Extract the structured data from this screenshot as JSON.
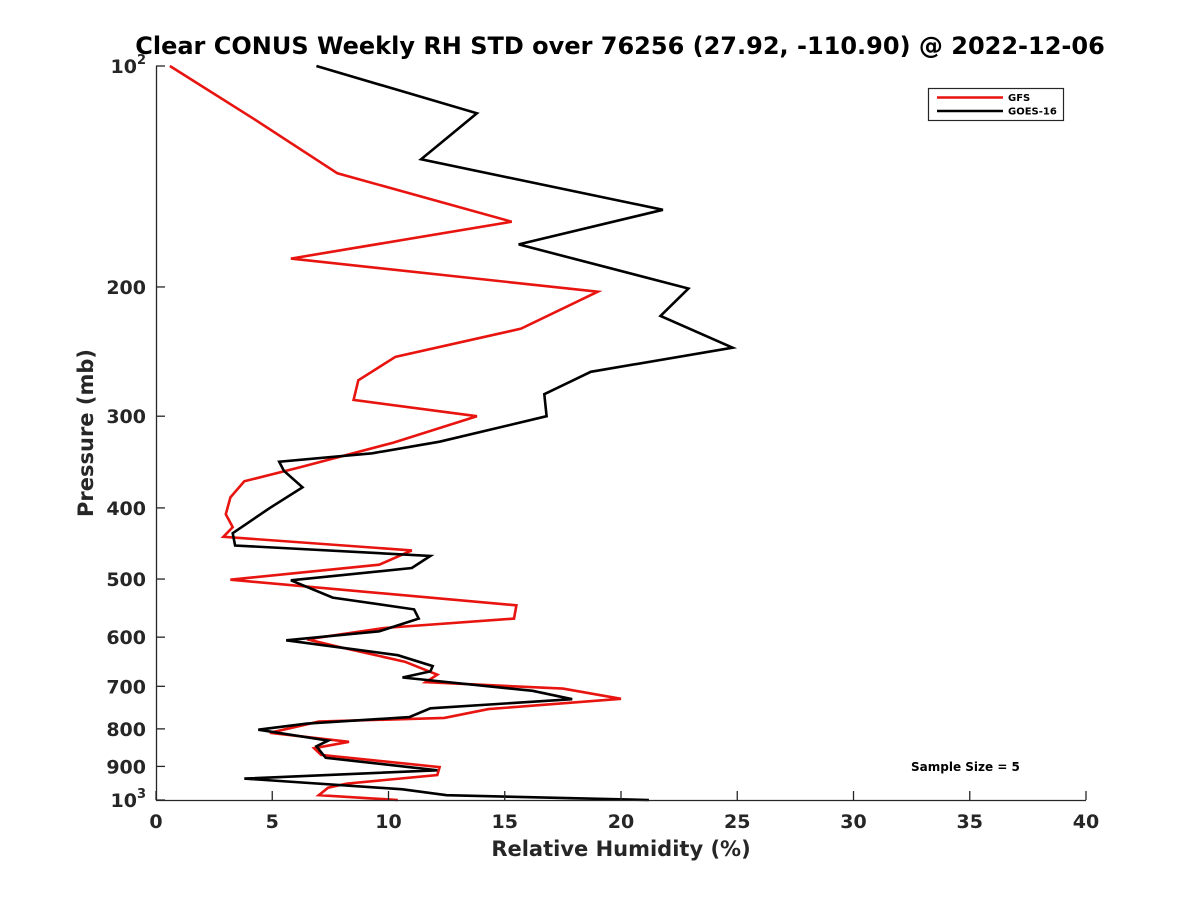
{
  "chart_data": {
    "type": "line",
    "title": "Clear CONUS Weekly RH STD over 76256 (27.92, -110.90) @ 2022-12-06",
    "xlabel": "Relative Humidity (%)",
    "ylabel": "Pressure (mb)",
    "xlim": [
      0,
      40
    ],
    "ylim": [
      100,
      1000
    ],
    "yscale": "log",
    "y_reversed": true,
    "xticks": [
      0,
      5,
      10,
      15,
      20,
      25,
      30,
      35,
      40
    ],
    "xtick_labels": [
      "0",
      "5",
      "10",
      "15",
      "20",
      "25",
      "30",
      "35",
      "40"
    ],
    "yticks": [
      100,
      200,
      300,
      400,
      500,
      600,
      700,
      800,
      900,
      1000
    ],
    "ytick_labels": [
      {
        "base": "10",
        "exp": "2"
      },
      {
        "base": "200",
        "exp": ""
      },
      {
        "base": "300",
        "exp": ""
      },
      {
        "base": "400",
        "exp": ""
      },
      {
        "base": "500",
        "exp": ""
      },
      {
        "base": "600",
        "exp": ""
      },
      {
        "base": "700",
        "exp": ""
      },
      {
        "base": "800",
        "exp": ""
      },
      {
        "base": "900",
        "exp": ""
      },
      {
        "base": "10",
        "exp": "3"
      }
    ],
    "legend_position": "top-right",
    "annotation": "Sample Size = 5",
    "series": [
      {
        "name": "GFS",
        "color": "#e8140f",
        "points": [
          [
            0.6,
            100
          ],
          [
            4.2,
            118
          ],
          [
            7.8,
            140
          ],
          [
            15.3,
            163
          ],
          [
            5.8,
            183
          ],
          [
            19.0,
            203
          ],
          [
            15.7,
            228
          ],
          [
            10.3,
            249
          ],
          [
            8.7,
            268
          ],
          [
            8.5,
            285
          ],
          [
            13.8,
            300
          ],
          [
            10.2,
            326
          ],
          [
            6.2,
            352
          ],
          [
            3.8,
            368
          ],
          [
            3.2,
            387
          ],
          [
            3.0,
            408
          ],
          [
            3.3,
            425
          ],
          [
            2.9,
            438
          ],
          [
            11.0,
            457
          ],
          [
            9.6,
            478
          ],
          [
            3.2,
            501
          ],
          [
            15.5,
            543
          ],
          [
            15.4,
            566
          ],
          [
            9.8,
            583
          ],
          [
            6.5,
            604
          ],
          [
            8.0,
            620
          ],
          [
            10.7,
            648
          ],
          [
            12.1,
            675
          ],
          [
            11.6,
            691
          ],
          [
            17.5,
            705
          ],
          [
            20.0,
            728
          ],
          [
            14.3,
            752
          ],
          [
            12.4,
            773
          ],
          [
            7.0,
            782
          ],
          [
            4.9,
            810
          ],
          [
            8.3,
            833
          ],
          [
            6.8,
            850
          ],
          [
            7.1,
            868
          ],
          [
            12.2,
            902
          ],
          [
            12.1,
            925
          ],
          [
            8.2,
            950
          ],
          [
            7.4,
            962
          ],
          [
            7.0,
            985
          ],
          [
            10.4,
            1000
          ]
        ]
      },
      {
        "name": "GOES-16",
        "color": "#000000",
        "points": [
          [
            6.9,
            100
          ],
          [
            13.8,
            116
          ],
          [
            11.4,
            134
          ],
          [
            21.8,
            157
          ],
          [
            15.6,
            175
          ],
          [
            22.9,
            201
          ],
          [
            21.7,
            219
          ],
          [
            24.8,
            242
          ],
          [
            18.7,
            261
          ],
          [
            16.7,
            280
          ],
          [
            16.8,
            300
          ],
          [
            12.2,
            325
          ],
          [
            9.3,
            337
          ],
          [
            5.3,
            346
          ],
          [
            5.5,
            356
          ],
          [
            6.3,
            375
          ],
          [
            4.9,
            400
          ],
          [
            3.3,
            433
          ],
          [
            3.4,
            450
          ],
          [
            11.8,
            465
          ],
          [
            11.0,
            483
          ],
          [
            5.8,
            502
          ],
          [
            7.6,
            530
          ],
          [
            11.1,
            550
          ],
          [
            11.3,
            566
          ],
          [
            9.6,
            589
          ],
          [
            5.6,
            606
          ],
          [
            10.4,
            635
          ],
          [
            11.9,
            657
          ],
          [
            11.8,
            668
          ],
          [
            10.6,
            681
          ],
          [
            16.2,
            710
          ],
          [
            17.9,
            729
          ],
          [
            11.8,
            750
          ],
          [
            10.9,
            771
          ],
          [
            6.5,
            787
          ],
          [
            4.4,
            802
          ],
          [
            7.4,
            830
          ],
          [
            6.9,
            845
          ],
          [
            7.3,
            876
          ],
          [
            12.1,
            911
          ],
          [
            3.8,
            935
          ],
          [
            10.6,
            967
          ],
          [
            12.5,
            985
          ],
          [
            21.2,
            1000
          ]
        ]
      }
    ]
  }
}
